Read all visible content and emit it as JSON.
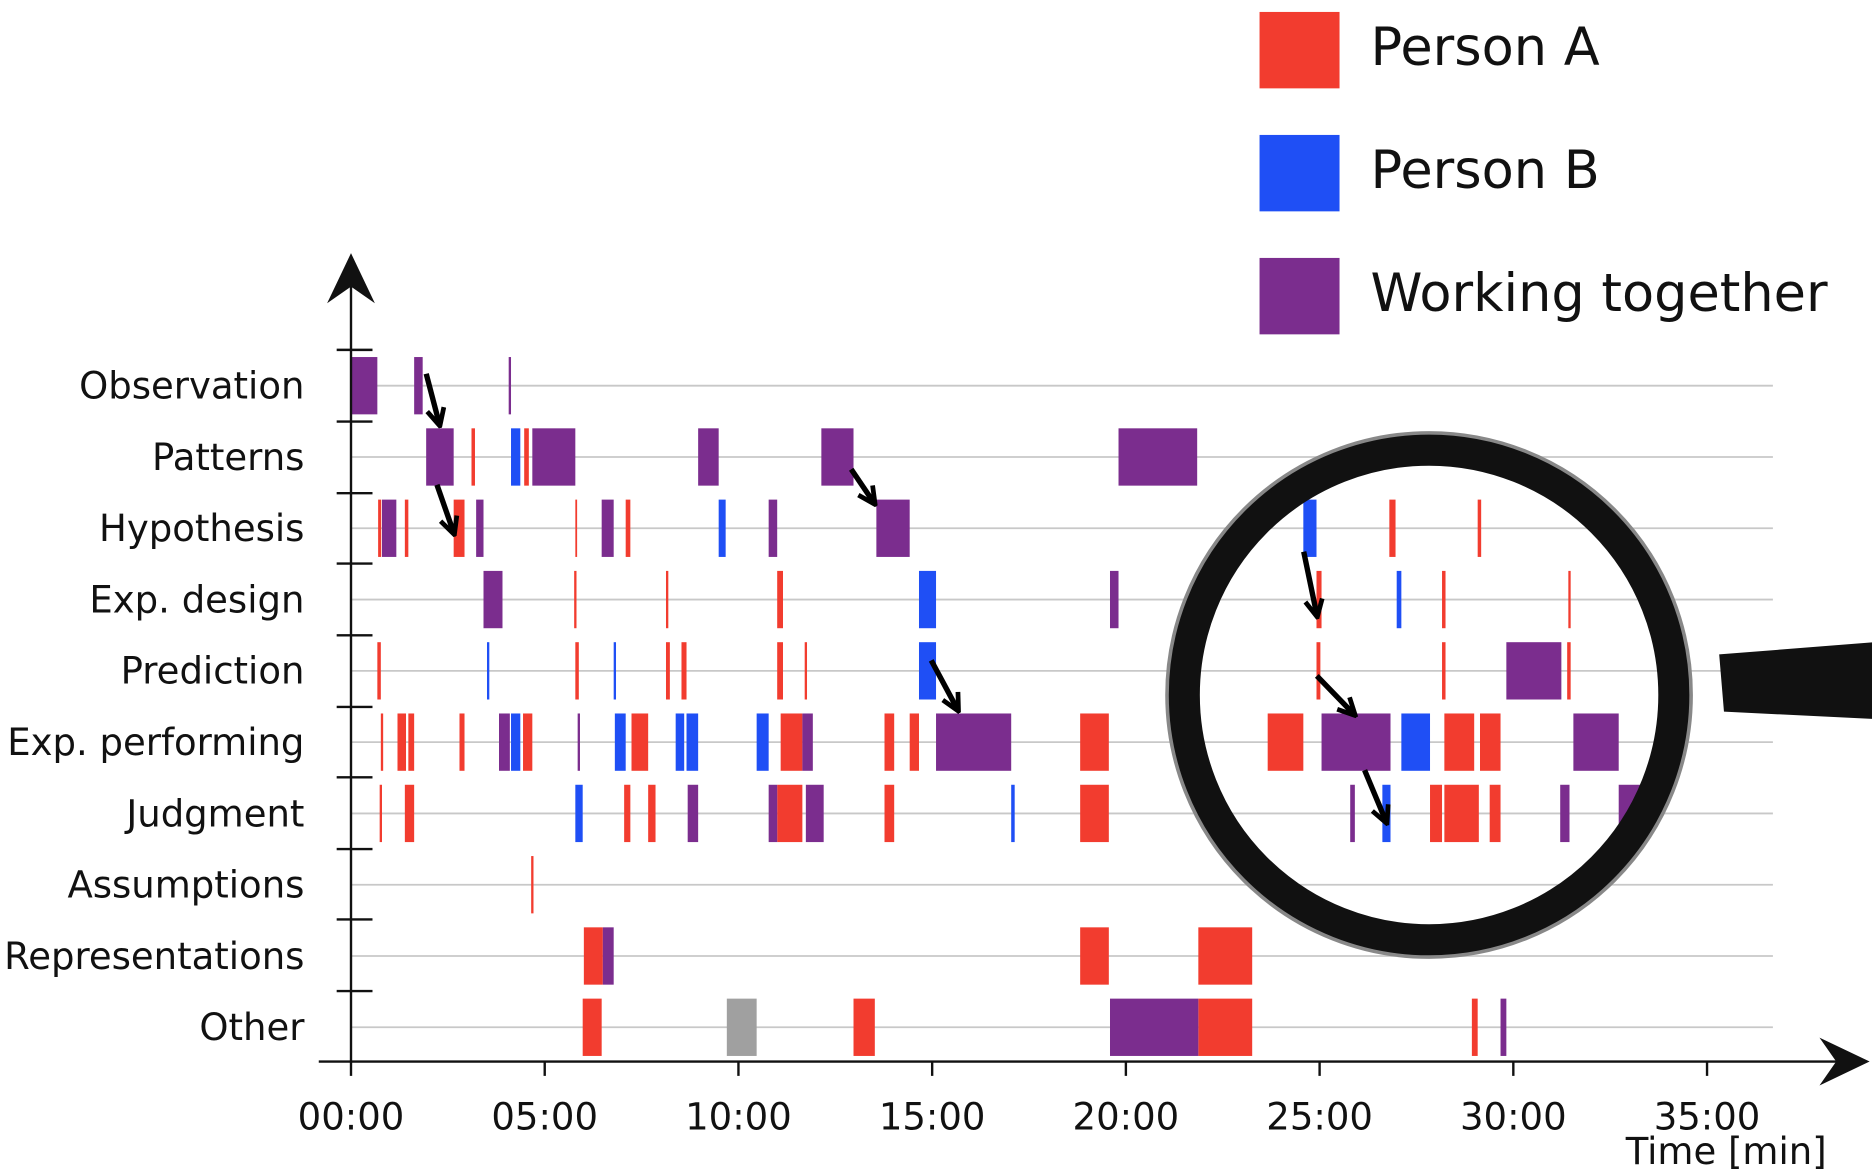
{
  "chart_data": {
    "type": "timeline",
    "x_label": "Time [min]",
    "categories": [
      "Observation",
      "Patterns",
      "Hypothesis",
      "Exp. design",
      "Prediction",
      "Exp. performing",
      "Judgment",
      "Assumptions",
      "Representations",
      "Other"
    ],
    "xlim": [
      0,
      36.7
    ],
    "xticks": [
      {
        "value": 0,
        "label": "00:00"
      },
      {
        "value": 5,
        "label": "05:00"
      },
      {
        "value": 10,
        "label": "10:00"
      },
      {
        "value": 15,
        "label": "15:00"
      },
      {
        "value": 20,
        "label": "20:00"
      },
      {
        "value": 25,
        "label": "25:00"
      },
      {
        "value": 30,
        "label": "30:00"
      },
      {
        "value": 35,
        "label": "35:00"
      }
    ],
    "grid": true,
    "legend": "top-right",
    "series": [
      {
        "name": "Person A",
        "color": "#f23c2f",
        "values": [
          [],
          [
            [
              3.11,
              3.2
            ],
            [
              4.47,
              4.59
            ]
          ],
          [
            [
              0.7,
              0.78
            ],
            [
              1.39,
              1.48
            ],
            [
              2.65,
              2.93
            ],
            [
              5.79,
              5.82
            ],
            [
              7.09,
              7.21
            ],
            [
              26.8,
              26.96
            ],
            [
              29.08,
              29.17
            ]
          ],
          [
            [
              5.76,
              5.82
            ],
            [
              8.13,
              8.19
            ],
            [
              11.0,
              11.15
            ],
            [
              24.92,
              25.05
            ],
            [
              28.16,
              28.25
            ],
            [
              31.42,
              31.48
            ]
          ],
          [
            [
              0.68,
              0.77
            ],
            [
              5.79,
              5.88
            ],
            [
              8.13,
              8.23
            ],
            [
              8.53,
              8.66
            ],
            [
              11.0,
              11.15
            ],
            [
              11.71,
              11.77
            ],
            [
              24.92,
              25.02
            ],
            [
              28.16,
              28.25
            ],
            [
              31.39,
              31.48
            ]
          ],
          [
            [
              0.77,
              0.83
            ],
            [
              1.2,
              1.42
            ],
            [
              1.48,
              1.63
            ],
            [
              2.8,
              2.93
            ],
            [
              4.44,
              4.68
            ],
            [
              7.24,
              7.67
            ],
            [
              11.09,
              11.65
            ],
            [
              13.77,
              14.02
            ],
            [
              14.42,
              14.66
            ],
            [
              18.82,
              19.56
            ],
            [
              23.66,
              24.58
            ],
            [
              28.22,
              28.99
            ],
            [
              29.14,
              29.67
            ]
          ],
          [
            [
              0.74,
              0.8
            ],
            [
              1.39,
              1.63
            ],
            [
              7.05,
              7.21
            ],
            [
              7.67,
              7.86
            ],
            [
              11.0,
              11.65
            ],
            [
              13.77,
              14.02
            ],
            [
              18.82,
              19.56
            ],
            [
              27.85,
              28.16
            ],
            [
              28.22,
              29.11
            ],
            [
              29.39,
              29.67
            ]
          ],
          [
            [
              4.65,
              4.71
            ]
          ],
          [
            [
              6.01,
              6.5
            ],
            [
              18.82,
              19.56
            ],
            [
              21.87,
              23.26
            ]
          ],
          [
            [
              5.98,
              6.47
            ],
            [
              12.97,
              13.52
            ],
            [
              21.87,
              23.26
            ],
            [
              28.93,
              29.08
            ]
          ]
        ]
      },
      {
        "name": "Person B",
        "color": "#1f4ff5",
        "values": [
          [],
          [
            [
              4.13,
              4.37
            ]
          ],
          [
            [
              9.49,
              9.67
            ],
            [
              24.58,
              24.92
            ]
          ],
          [
            [
              14.66,
              15.1
            ],
            [
              26.99,
              27.11
            ]
          ],
          [
            [
              3.51,
              3.57
            ],
            [
              6.78,
              6.84
            ],
            [
              14.66,
              15.1
            ]
          ],
          [
            [
              4.13,
              4.37
            ],
            [
              6.81,
              7.09
            ],
            [
              8.38,
              8.6
            ],
            [
              8.66,
              8.96
            ],
            [
              10.47,
              10.78
            ],
            [
              27.11,
              27.85
            ]
          ],
          [
            [
              5.79,
              5.98
            ],
            [
              17.04,
              17.13
            ],
            [
              26.62,
              26.83
            ]
          ],
          [],
          [],
          []
        ]
      },
      {
        "name": "Working together",
        "color": "#7b2d8e",
        "values": [
          [
            [
              0,
              0.68
            ],
            [
              1.63,
              1.85
            ],
            [
              4.07,
              4.13
            ]
          ],
          [
            [
              1.94,
              2.65
            ],
            [
              4.68,
              5.79
            ],
            [
              8.96,
              9.49
            ],
            [
              12.14,
              12.97
            ],
            [
              19.81,
              21.84
            ]
          ],
          [
            [
              0.8,
              1.17
            ],
            [
              3.23,
              3.42
            ],
            [
              6.47,
              6.78
            ],
            [
              10.78,
              11.0
            ],
            [
              13.56,
              14.42
            ]
          ],
          [
            [
              3.42,
              3.91
            ],
            [
              19.59,
              19.81
            ]
          ],
          [
            [
              29.82,
              31.24
            ]
          ],
          [
            [
              3.82,
              4.1
            ],
            [
              5.85,
              5.91
            ],
            [
              11.65,
              11.92
            ],
            [
              15.1,
              17.04
            ],
            [
              25.05,
              26.83
            ],
            [
              31.55,
              32.72
            ]
          ],
          [
            [
              8.69,
              8.96
            ],
            [
              10.78,
              11.0
            ],
            [
              11.74,
              12.2
            ],
            [
              25.79,
              25.91
            ],
            [
              31.21,
              31.45
            ],
            [
              32.72,
              33.33
            ]
          ],
          [],
          [
            [
              6.5,
              6.78
            ]
          ],
          [
            [
              19.59,
              21.87
            ],
            [
              29.67,
              29.82
            ]
          ]
        ]
      },
      {
        "color": "#a0a0a0",
        "values": [
          [],
          [],
          [],
          [],
          [],
          [],
          [],
          [],
          [],
          [
            [
              9.7,
              10.47
            ]
          ]
        ]
      }
    ]
  }
}
